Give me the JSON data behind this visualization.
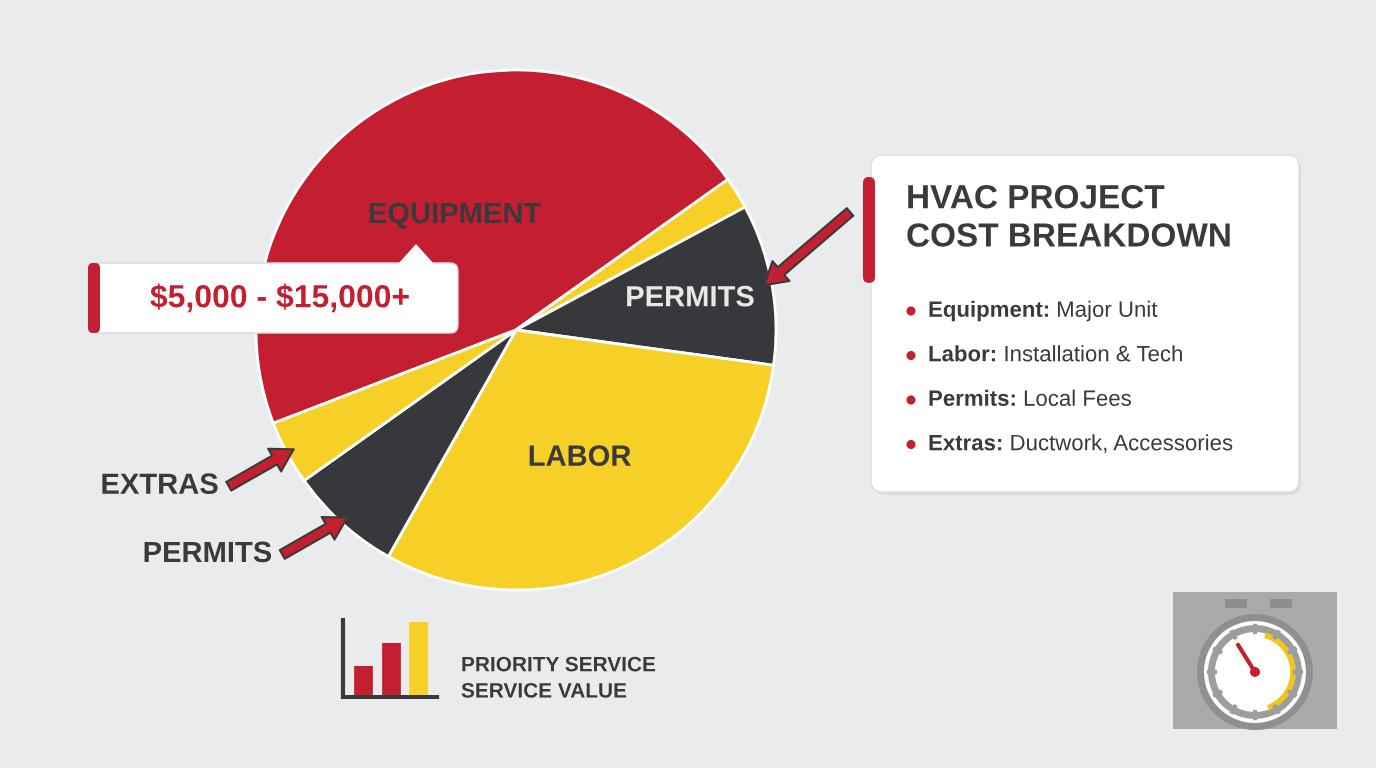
{
  "chart_data": [
    {
      "type": "pie",
      "categories": [
        "EQUIPMENT",
        null,
        "PERMITS",
        "LABOR",
        "PERMITS",
        "EXTRAS"
      ],
      "values": [
        46,
        2,
        10,
        31,
        7,
        4
      ],
      "colors": [
        "#c41f30",
        "#f6d026",
        "#37383b",
        "#f6d026",
        "#37383b",
        "#f6d026"
      ],
      "annotations": [
        "$5,000 - $15,000+",
        "PRIORITY SERVICE\nSERVICE VALUE"
      ]
    },
    {
      "type": "other",
      "title": "HVAC PROJECT\nCOST BREAKDOWN",
      "annotations": [
        "Equipment: Major Unit",
        "Labor: Installation & Tech",
        "Permits: Local Fees",
        "Extras: Ductwork, Accessories"
      ]
    }
  ]
}
